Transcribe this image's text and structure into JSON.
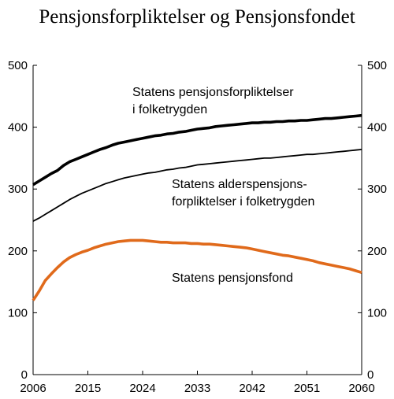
{
  "chart_data": {
    "type": "line",
    "title": "Pensjonsforpliktelser og Pensjonsfondet",
    "xlabel": "",
    "ylabel": "",
    "xlim": [
      2006,
      2060
    ],
    "ylim": [
      0,
      500
    ],
    "x_ticks": [
      "2006",
      "2015",
      "2024",
      "2033",
      "2042",
      "2051",
      "2060"
    ],
    "y_ticks": [
      "0",
      "100",
      "200",
      "300",
      "400",
      "500"
    ],
    "grid": false,
    "legend": "none",
    "x": [
      2006,
      2007,
      2008,
      2009,
      2010,
      2011,
      2012,
      2013,
      2014,
      2015,
      2016,
      2017,
      2018,
      2019,
      2020,
      2021,
      2022,
      2023,
      2024,
      2025,
      2026,
      2027,
      2028,
      2029,
      2030,
      2031,
      2032,
      2033,
      2034,
      2035,
      2036,
      2037,
      2038,
      2039,
      2040,
      2041,
      2042,
      2043,
      2044,
      2045,
      2046,
      2047,
      2048,
      2049,
      2050,
      2051,
      2052,
      2053,
      2054,
      2055,
      2056,
      2057,
      2058,
      2059,
      2060
    ],
    "series": [
      {
        "key": "forpliktelser",
        "color": "#000000",
        "stroke_weight": "heavy",
        "values": [
          307,
          313,
          319,
          325,
          330,
          338,
          344,
          348,
          352,
          356,
          360,
          364,
          367,
          371,
          374,
          376,
          378,
          380,
          382,
          384,
          386,
          387,
          389,
          390,
          392,
          393,
          395,
          397,
          398,
          399,
          401,
          402,
          403,
          404,
          405,
          406,
          407,
          407,
          408,
          408,
          409,
          409,
          410,
          410,
          411,
          411,
          412,
          413,
          414,
          414,
          415,
          416,
          417,
          418,
          419
        ]
      },
      {
        "key": "alderspensjon",
        "color": "#000000",
        "stroke_weight": "normal",
        "values": [
          248,
          253,
          259,
          265,
          271,
          277,
          283,
          288,
          293,
          297,
          301,
          305,
          309,
          312,
          315,
          318,
          320,
          322,
          324,
          326,
          327,
          329,
          331,
          332,
          334,
          335,
          337,
          339,
          340,
          341,
          342,
          343,
          344,
          345,
          346,
          347,
          348,
          349,
          350,
          350,
          351,
          352,
          353,
          354,
          355,
          356,
          356,
          357,
          358,
          359,
          360,
          361,
          362,
          363,
          364
        ]
      },
      {
        "key": "pensjonsfond",
        "color": "#e06a1b",
        "stroke_weight": "heavy",
        "values": [
          120,
          135,
          152,
          163,
          173,
          182,
          189,
          194,
          198,
          201,
          205,
          208,
          211,
          213,
          215,
          216,
          217,
          217,
          217,
          216,
          215,
          214,
          214,
          213,
          213,
          213,
          212,
          212,
          211,
          211,
          210,
          209,
          208,
          207,
          206,
          205,
          203,
          201,
          199,
          197,
          195,
          193,
          192,
          190,
          188,
          186,
          184,
          181,
          179,
          177,
          175,
          173,
          171,
          168,
          165
        ]
      }
    ],
    "annotations": [
      {
        "key": "forpliktelser",
        "lines": [
          "Statens pensjonsforpliktelser",
          "i folketrygden"
        ]
      },
      {
        "key": "alderspensjon",
        "lines": [
          "Statens alderspensjons-",
          "forpliktelser i folketrygden"
        ]
      },
      {
        "key": "pensjonsfond",
        "lines": [
          "Statens pensjonsfond"
        ]
      }
    ]
  }
}
